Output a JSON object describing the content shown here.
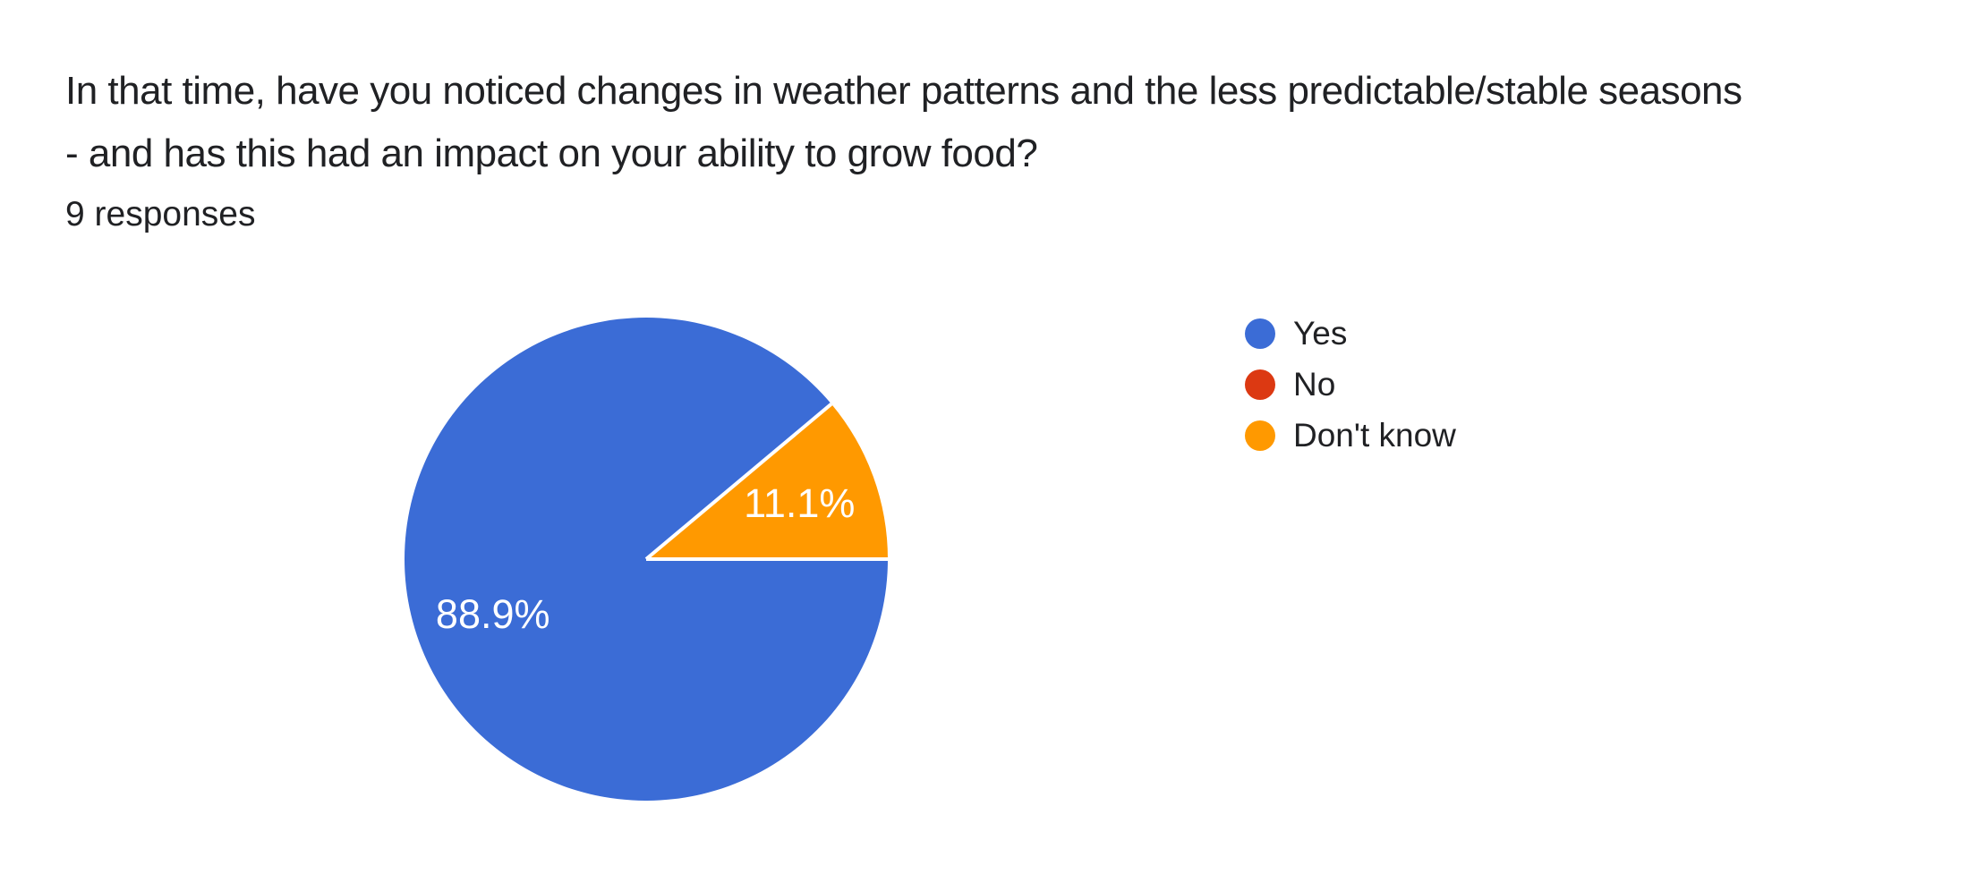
{
  "header": {
    "title_line1": "In that time, have you noticed changes in weather patterns and the less predictable/stable seasons",
    "title_line2": "- and has this had an impact on your ability to grow food?",
    "responses_count": "9 responses"
  },
  "colors": {
    "background": "#ffffff",
    "title_text": "#202124",
    "slice_label_text": "#ffffff",
    "separator": "#ffffff"
  },
  "chart_data": {
    "type": "pie",
    "title": "In that time, have you noticed changes in weather patterns and the less predictable/stable seasons - and has this had an impact on your ability to grow food?",
    "subtitle": "9 responses",
    "total_responses": 9,
    "legend_position": "right",
    "start_angle_deg": 0,
    "direction": "clockwise",
    "series": [
      {
        "name": "Yes",
        "percent": 88.9,
        "slice_label": "88.9%",
        "color": "#3B6CD6"
      },
      {
        "name": "No",
        "percent": 0,
        "slice_label": "",
        "color": "#DC3912"
      },
      {
        "name": "Don't know",
        "percent": 11.1,
        "slice_label": "11.1%",
        "color": "#FF9900"
      }
    ]
  }
}
